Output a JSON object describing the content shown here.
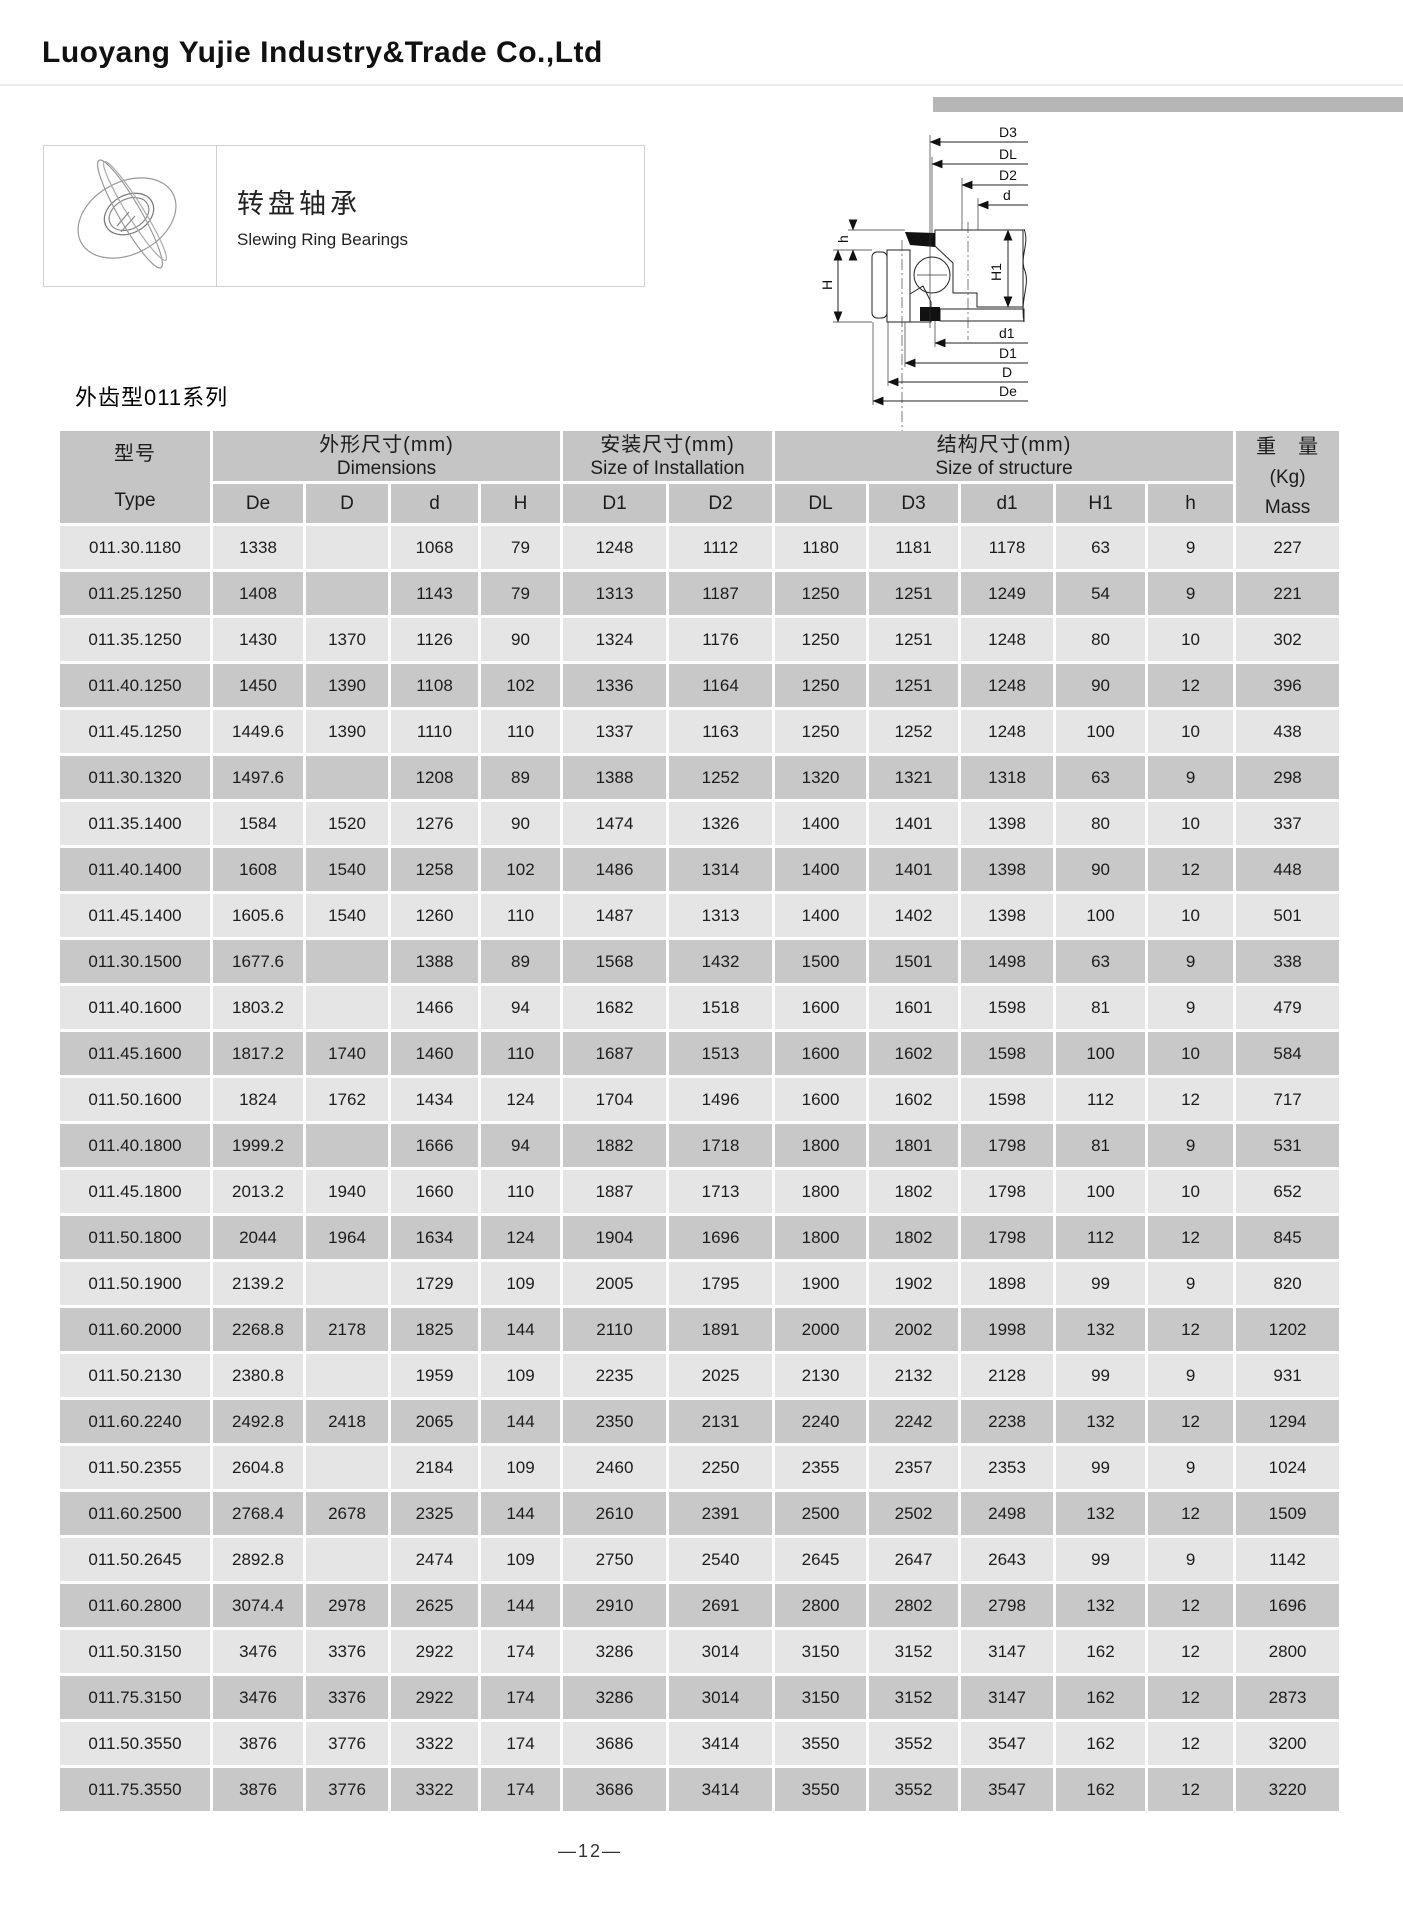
{
  "page": {
    "company": "Luoyang Yujie Industry&Trade Co.,Ltd",
    "product_zh": "转盘轴承",
    "product_en": "Slewing Ring Bearings",
    "series_title": "外齿型011系列",
    "page_number": "—12—"
  },
  "diagram": {
    "labels": {
      "d3": "D3",
      "dl": "DL",
      "d2": "D2",
      "d_top": "d",
      "d1": "d1",
      "D1": "D1",
      "D": "D",
      "De": "De",
      "H": "H",
      "h": "h",
      "H1": "H1"
    }
  },
  "table": {
    "header": {
      "type_zh": "型号",
      "type_en": "Type",
      "dims_zh": "外形尺寸(mm)",
      "dims_en": "Dimensions",
      "install_zh": "安装尺寸(mm)",
      "install_en": "Size of Installation",
      "struct_zh": "结构尺寸(mm)",
      "struct_en": "Size of structure",
      "mass_zh": "重　量",
      "mass_unit": "(Kg)",
      "mass_en": "Mass",
      "sub": [
        "De",
        "D",
        "d",
        "H",
        "D1",
        "D2",
        "DL",
        "D3",
        "d1",
        "H1",
        "h"
      ]
    },
    "rows": [
      [
        "011.30.1180",
        "1338",
        "",
        "1068",
        "79",
        "1248",
        "1112",
        "1180",
        "1181",
        "1178",
        "63",
        "9",
        "227"
      ],
      [
        "011.25.1250",
        "1408",
        "",
        "1143",
        "79",
        "1313",
        "1187",
        "1250",
        "1251",
        "1249",
        "54",
        "9",
        "221"
      ],
      [
        "011.35.1250",
        "1430",
        "1370",
        "1126",
        "90",
        "1324",
        "1176",
        "1250",
        "1251",
        "1248",
        "80",
        "10",
        "302"
      ],
      [
        "011.40.1250",
        "1450",
        "1390",
        "1108",
        "102",
        "1336",
        "1164",
        "1250",
        "1251",
        "1248",
        "90",
        "12",
        "396"
      ],
      [
        "011.45.1250",
        "1449.6",
        "1390",
        "1110",
        "110",
        "1337",
        "1163",
        "1250",
        "1252",
        "1248",
        "100",
        "10",
        "438"
      ],
      [
        "011.30.1320",
        "1497.6",
        "",
        "1208",
        "89",
        "1388",
        "1252",
        "1320",
        "1321",
        "1318",
        "63",
        "9",
        "298"
      ],
      [
        "011.35.1400",
        "1584",
        "1520",
        "1276",
        "90",
        "1474",
        "1326",
        "1400",
        "1401",
        "1398",
        "80",
        "10",
        "337"
      ],
      [
        "011.40.1400",
        "1608",
        "1540",
        "1258",
        "102",
        "1486",
        "1314",
        "1400",
        "1401",
        "1398",
        "90",
        "12",
        "448"
      ],
      [
        "011.45.1400",
        "1605.6",
        "1540",
        "1260",
        "110",
        "1487",
        "1313",
        "1400",
        "1402",
        "1398",
        "100",
        "10",
        "501"
      ],
      [
        "011.30.1500",
        "1677.6",
        "",
        "1388",
        "89",
        "1568",
        "1432",
        "1500",
        "1501",
        "1498",
        "63",
        "9",
        "338"
      ],
      [
        "011.40.1600",
        "1803.2",
        "",
        "1466",
        "94",
        "1682",
        "1518",
        "1600",
        "1601",
        "1598",
        "81",
        "9",
        "479"
      ],
      [
        "011.45.1600",
        "1817.2",
        "1740",
        "1460",
        "110",
        "1687",
        "1513",
        "1600",
        "1602",
        "1598",
        "100",
        "10",
        "584"
      ],
      [
        "011.50.1600",
        "1824",
        "1762",
        "1434",
        "124",
        "1704",
        "1496",
        "1600",
        "1602",
        "1598",
        "112",
        "12",
        "717"
      ],
      [
        "011.40.1800",
        "1999.2",
        "",
        "1666",
        "94",
        "1882",
        "1718",
        "1800",
        "1801",
        "1798",
        "81",
        "9",
        "531"
      ],
      [
        "011.45.1800",
        "2013.2",
        "1940",
        "1660",
        "110",
        "1887",
        "1713",
        "1800",
        "1802",
        "1798",
        "100",
        "10",
        "652"
      ],
      [
        "011.50.1800",
        "2044",
        "1964",
        "1634",
        "124",
        "1904",
        "1696",
        "1800",
        "1802",
        "1798",
        "112",
        "12",
        "845"
      ],
      [
        "011.50.1900",
        "2139.2",
        "",
        "1729",
        "109",
        "2005",
        "1795",
        "1900",
        "1902",
        "1898",
        "99",
        "9",
        "820"
      ],
      [
        "011.60.2000",
        "2268.8",
        "2178",
        "1825",
        "144",
        "2110",
        "1891",
        "2000",
        "2002",
        "1998",
        "132",
        "12",
        "1202"
      ],
      [
        "011.50.2130",
        "2380.8",
        "",
        "1959",
        "109",
        "2235",
        "2025",
        "2130",
        "2132",
        "2128",
        "99",
        "9",
        "931"
      ],
      [
        "011.60.2240",
        "2492.8",
        "2418",
        "2065",
        "144",
        "2350",
        "2131",
        "2240",
        "2242",
        "2238",
        "132",
        "12",
        "1294"
      ],
      [
        "011.50.2355",
        "2604.8",
        "",
        "2184",
        "109",
        "2460",
        "2250",
        "2355",
        "2357",
        "2353",
        "99",
        "9",
        "1024"
      ],
      [
        "011.60.2500",
        "2768.4",
        "2678",
        "2325",
        "144",
        "2610",
        "2391",
        "2500",
        "2502",
        "2498",
        "132",
        "12",
        "1509"
      ],
      [
        "011.50.2645",
        "2892.8",
        "",
        "2474",
        "109",
        "2750",
        "2540",
        "2645",
        "2647",
        "2643",
        "99",
        "9",
        "1142"
      ],
      [
        "011.60.2800",
        "3074.4",
        "2978",
        "2625",
        "144",
        "2910",
        "2691",
        "2800",
        "2802",
        "2798",
        "132",
        "12",
        "1696"
      ],
      [
        "011.50.3150",
        "3476",
        "3376",
        "2922",
        "174",
        "3286",
        "3014",
        "3150",
        "3152",
        "3147",
        "162",
        "12",
        "2800"
      ],
      [
        "011.75.3150",
        "3476",
        "3376",
        "2922",
        "174",
        "3286",
        "3014",
        "3150",
        "3152",
        "3147",
        "162",
        "12",
        "2873"
      ],
      [
        "011.50.3550",
        "3876",
        "3776",
        "3322",
        "174",
        "3686",
        "3414",
        "3550",
        "3552",
        "3547",
        "162",
        "12",
        "3200"
      ],
      [
        "011.75.3550",
        "3876",
        "3776",
        "3322",
        "174",
        "3686",
        "3414",
        "3550",
        "3552",
        "3547",
        "162",
        "12",
        "3220"
      ]
    ]
  }
}
